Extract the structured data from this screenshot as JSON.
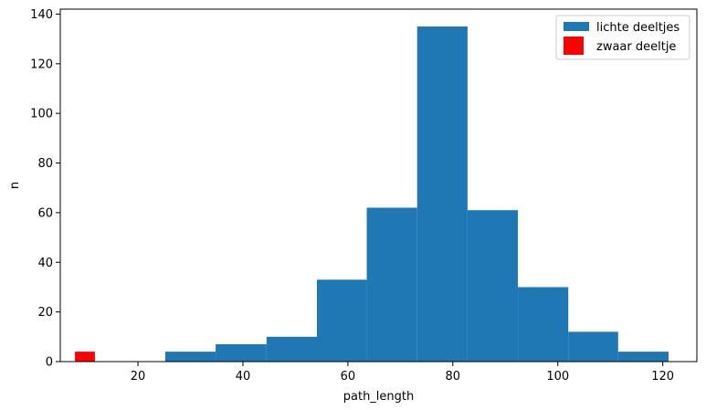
{
  "chart_data": {
    "type": "bar",
    "xlabel": "path_length",
    "ylabel": "n",
    "xlim": [
      5.2,
      126.5
    ],
    "ylim": [
      0,
      142
    ],
    "x_ticks": [
      20,
      40,
      60,
      80,
      100,
      120
    ],
    "y_ticks": [
      0,
      20,
      40,
      60,
      80,
      100,
      120,
      140
    ],
    "legend_position": "top-right",
    "series": [
      {
        "name": "lichte deeltjes",
        "color": "#1f77b4",
        "bins": [
          {
            "x0": 25.2,
            "x1": 34.8,
            "value": 4
          },
          {
            "x0": 34.8,
            "x1": 44.5,
            "value": 7
          },
          {
            "x0": 44.5,
            "x1": 54.1,
            "value": 10
          },
          {
            "x0": 54.1,
            "x1": 63.6,
            "value": 33
          },
          {
            "x0": 63.6,
            "x1": 73.2,
            "value": 62
          },
          {
            "x0": 73.2,
            "x1": 82.8,
            "value": 135
          },
          {
            "x0": 82.8,
            "x1": 92.4,
            "value": 61
          },
          {
            "x0": 92.4,
            "x1": 102.0,
            "value": 30
          },
          {
            "x0": 102.0,
            "x1": 111.5,
            "value": 12
          },
          {
            "x0": 111.5,
            "x1": 121.1,
            "value": 4
          }
        ]
      },
      {
        "name": "zwaar deeltje",
        "color": "#ff0000",
        "bins": [
          {
            "x0": 8.0,
            "x1": 11.8,
            "value": 4
          }
        ]
      }
    ]
  }
}
